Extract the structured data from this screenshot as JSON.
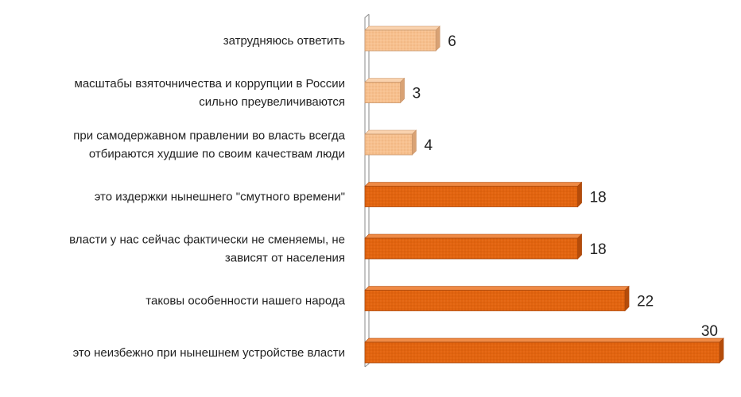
{
  "chart_data": {
    "type": "bar",
    "orientation": "horizontal",
    "title": "",
    "xlabel": "",
    "ylabel": "",
    "grid": false,
    "legend": "none",
    "xlim": [
      0,
      30
    ],
    "categories": [
      [
        "затрудняюсь ответить"
      ],
      [
        "масштабы взяточничества и коррупции в России",
        "сильно преувеличиваются"
      ],
      [
        "при самодержавном правлении во власть всегда",
        "отбираются худшие по своим качествам люди"
      ],
      [
        "это издержки нынешнего \"смутного времени\""
      ],
      [
        "власти у нас сейчас фактически не сменяемы, не",
        "зависят от населения"
      ],
      [
        "таковы особенности нашего народа"
      ],
      [
        "это неизбежно при нынешнем устройстве власти"
      ]
    ],
    "values": [
      6,
      3,
      4,
      18,
      18,
      22,
      30
    ],
    "colors": {
      "light": "#f7c08e",
      "light_edge": "#c9956a",
      "dark": "#e2640f",
      "dark_edge": "#a8460a",
      "axis": "#8a8a8a"
    },
    "light_count": 3
  }
}
